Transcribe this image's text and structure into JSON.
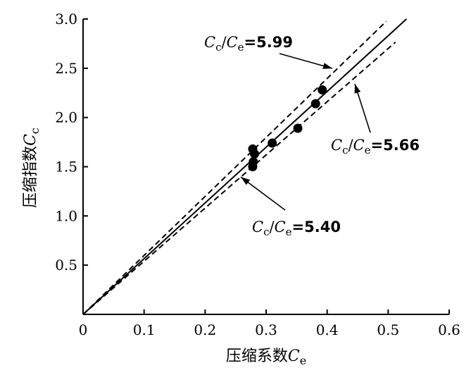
{
  "chart_data": {
    "type": "scatter",
    "title": "",
    "xlabel": "压缩系数Ce",
    "ylabel": "压缩指数Cc",
    "xlim": [
      0,
      0.6
    ],
    "ylim": [
      0,
      3.0
    ],
    "x_ticks": [
      "0",
      "0.1",
      "0.2",
      "0.3",
      "0.4",
      "0.5",
      "0.6"
    ],
    "y_ticks": [
      "0.5",
      "1.0",
      "1.5",
      "2.0",
      "2.5",
      "3.0"
    ],
    "grid": false,
    "series": [
      {
        "marker": "filled-circle",
        "points": [
          {
            "x": 0.278,
            "y": 1.68
          },
          {
            "x": 0.281,
            "y": 1.63
          },
          {
            "x": 0.279,
            "y": 1.55
          },
          {
            "x": 0.278,
            "y": 1.5
          },
          {
            "x": 0.31,
            "y": 1.74
          },
          {
            "x": 0.352,
            "y": 1.89
          },
          {
            "x": 0.381,
            "y": 2.14
          },
          {
            "x": 0.392,
            "y": 2.28
          }
        ]
      }
    ],
    "reference_lines": [
      {
        "slope": 5.99,
        "style": "dashed",
        "label_prefix": "Cc/Ce",
        "label_value": "=5.99",
        "x_end": 0.497
      },
      {
        "slope": 5.66,
        "style": "solid",
        "label_prefix": "Cc/Ce",
        "label_value": "=5.66",
        "x_end": 0.53
      },
      {
        "slope": 5.4,
        "style": "dashed",
        "label_prefix": "Cc/Ce",
        "label_value": "=5.40",
        "x_end": 0.512
      }
    ]
  }
}
